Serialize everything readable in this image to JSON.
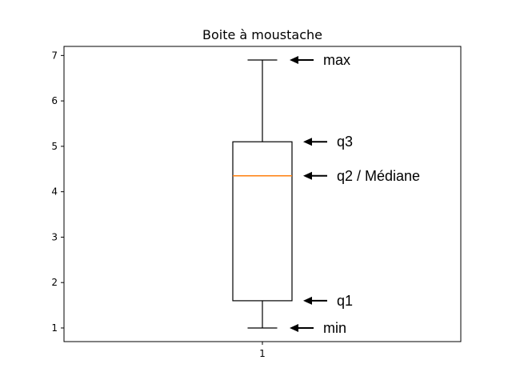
{
  "chart_data": {
    "type": "box",
    "title": "Boite à moustache",
    "xlabel": "",
    "ylabel": "",
    "categories": [
      "1"
    ],
    "ylim": [
      0.7,
      7.2
    ],
    "yticks": [
      1,
      2,
      3,
      4,
      5,
      6,
      7
    ],
    "grid": false,
    "box": {
      "min": 1.0,
      "q1": 1.6,
      "median": 4.35,
      "q3": 5.1,
      "max": 6.9
    },
    "annotations": [
      {
        "key": "max",
        "text": "max",
        "y": 6.9
      },
      {
        "key": "q3",
        "text": "q3",
        "y": 5.1
      },
      {
        "key": "median",
        "text": "q2 / Médiane",
        "y": 4.35
      },
      {
        "key": "q1",
        "text": "q1",
        "y": 1.6
      },
      {
        "key": "min",
        "text": "min",
        "y": 1.0
      }
    ],
    "colors": {
      "box": "#000000",
      "median": "#ff7f0e",
      "axes": "#000000",
      "arrow": "#000000"
    }
  }
}
